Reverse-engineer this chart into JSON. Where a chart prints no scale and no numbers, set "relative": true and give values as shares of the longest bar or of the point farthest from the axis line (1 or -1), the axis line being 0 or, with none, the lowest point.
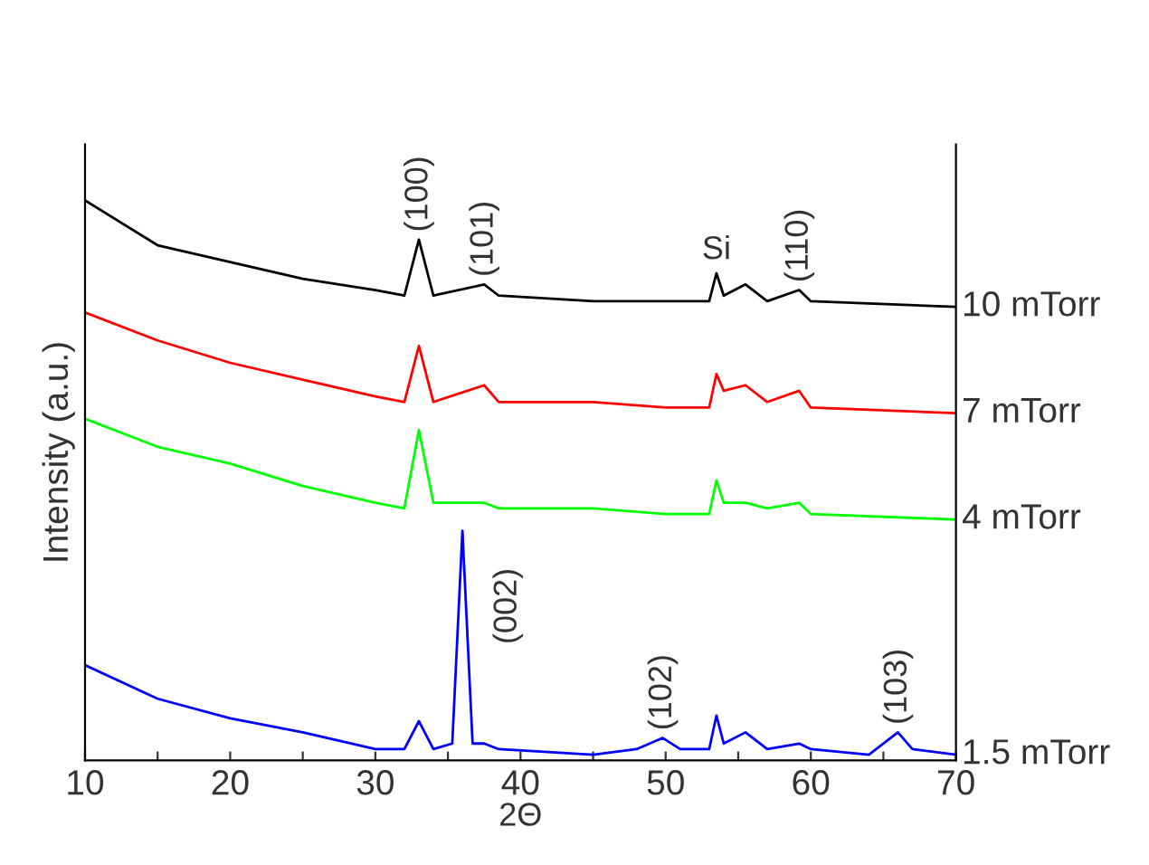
{
  "chart_data": {
    "type": "line",
    "relative": true,
    "xlabel": "2Θ",
    "ylabel": "Intensity (a.u.)",
    "xlim": [
      10,
      70
    ],
    "xticks": [
      10,
      {
        "value": 15,
        "label": null
      },
      20,
      {
        "value": 25,
        "label": null
      },
      30,
      {
        "value": 35,
        "label": null
      },
      40,
      {
        "value": 45,
        "label": null
      },
      50,
      {
        "value": 55,
        "label": null
      },
      60,
      {
        "value": 65,
        "label": null
      },
      70
    ],
    "grid": false,
    "legend": false,
    "marker": "none",
    "line_style": "solid",
    "series": [
      {
        "name": "10 mTorr",
        "color": "#000000",
        "x": [
          10,
          15,
          20,
          25,
          30,
          32,
          33,
          34,
          37.5,
          38.5,
          45,
          50,
          53,
          53.5,
          54,
          55.5,
          57,
          59.2,
          60,
          70
        ],
        "values": [
          1.0,
          0.92,
          0.89,
          0.86,
          0.84,
          0.83,
          0.93,
          0.83,
          0.85,
          0.83,
          0.82,
          0.82,
          0.82,
          0.87,
          0.83,
          0.85,
          0.82,
          0.84,
          0.82,
          0.81
        ]
      },
      {
        "name": "7 mTorr",
        "color": "#ff0000",
        "x": [
          10,
          15,
          20,
          25,
          30,
          32,
          33,
          34,
          37.5,
          38.5,
          45,
          50,
          53,
          53.5,
          54,
          55.5,
          57,
          59.2,
          60,
          70
        ],
        "values": [
          0.8,
          0.75,
          0.71,
          0.68,
          0.65,
          0.64,
          0.74,
          0.64,
          0.67,
          0.64,
          0.64,
          0.63,
          0.63,
          0.69,
          0.66,
          0.67,
          0.64,
          0.66,
          0.63,
          0.62
        ]
      },
      {
        "name": "4 mTorr",
        "color": "#00ff00",
        "x": [
          10,
          15,
          20,
          25,
          30,
          32,
          33,
          34,
          37.5,
          38.5,
          45,
          50,
          53,
          53.5,
          54,
          55.5,
          57,
          59.2,
          60,
          70
        ],
        "values": [
          0.61,
          0.56,
          0.53,
          0.49,
          0.46,
          0.45,
          0.59,
          0.46,
          0.46,
          0.45,
          0.45,
          0.44,
          0.44,
          0.5,
          0.46,
          0.46,
          0.45,
          0.46,
          0.44,
          0.43
        ]
      },
      {
        "name": "1.5 mTorr",
        "color": "#0000ff",
        "x": [
          10,
          15,
          20,
          25,
          30,
          32,
          33,
          34,
          35.3,
          36,
          36.7,
          37.5,
          38.5,
          45,
          48,
          49.8,
          51,
          53,
          53.5,
          54,
          55.5,
          57,
          59.2,
          60,
          64,
          66,
          67,
          70
        ],
        "values": [
          0.17,
          0.11,
          0.075,
          0.05,
          0.02,
          0.02,
          0.07,
          0.02,
          0.03,
          0.41,
          0.03,
          0.03,
          0.02,
          0.01,
          0.02,
          0.04,
          0.02,
          0.02,
          0.08,
          0.03,
          0.05,
          0.02,
          0.03,
          0.02,
          0.01,
          0.05,
          0.02,
          0.01
        ]
      }
    ],
    "annotations": [
      {
        "text": "(100)",
        "x": 33,
        "y": 0.93
      },
      {
        "text": "(101)",
        "x": 37.5,
        "y": 0.85
      },
      {
        "text": "Si",
        "x": 53.5,
        "y": 0.87
      },
      {
        "text": "(110)",
        "x": 59.2,
        "y": 0.84
      },
      {
        "text": "(002)",
        "x": 36,
        "y": 0.41
      },
      {
        "text": "(102)",
        "x": 49.8,
        "y": 0.04
      },
      {
        "text": "(103)",
        "x": 66,
        "y": 0.05
      }
    ]
  }
}
